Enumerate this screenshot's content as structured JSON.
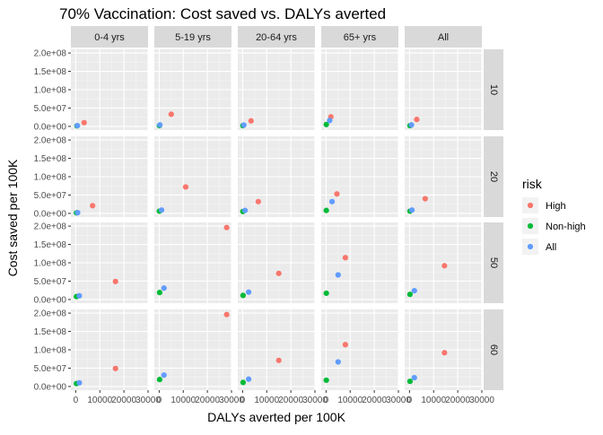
{
  "chart_data": {
    "type": "scatter",
    "title": "70% Vaccination: Cost saved vs. DALYs averted",
    "xlabel": "DALYs averted per 100K",
    "ylabel": "Cost saved per 100K",
    "xlim": [
      -2000,
      30000
    ],
    "ylim": [
      -10000000,
      210000000
    ],
    "x_ticks": [
      {
        "value": 0,
        "label": "0"
      },
      {
        "value": 10000,
        "label": "10000"
      },
      {
        "value": 20000,
        "label": "20000"
      },
      {
        "value": 30000,
        "label": "30000"
      }
    ],
    "y_ticks": [
      {
        "value": 0,
        "label": "0.0e+00"
      },
      {
        "value": 50000000,
        "label": "5.0e+07"
      },
      {
        "value": 100000000,
        "label": "1.0e+08"
      },
      {
        "value": 150000000,
        "label": "1.5e+08"
      },
      {
        "value": 200000000,
        "label": "2.0e+08"
      }
    ],
    "grid": true,
    "legend": {
      "title": "risk",
      "position": "right",
      "entries": [
        {
          "label": "High",
          "color": "#F8766D"
        },
        {
          "label": "Non-high",
          "color": "#00BA38"
        },
        {
          "label": "All",
          "color": "#619CFF"
        }
      ]
    },
    "facet_columns": [
      "0-4 yrs",
      "5-19 yrs",
      "20-64 yrs",
      "65+ yrs",
      "All"
    ],
    "facet_rows": [
      "10",
      "20",
      "50",
      "60"
    ],
    "panels": [
      [
        {
          "High": [
            3500,
            10000000
          ],
          "Non-high": [
            500,
            1500000
          ],
          "All": [
            700,
            2000000
          ]
        },
        {
          "High": [
            5000,
            33000000
          ],
          "Non-high": [
            100,
            2000000
          ],
          "All": [
            300,
            4000000
          ]
        },
        {
          "High": [
            3500,
            15000000
          ],
          "Non-high": [
            100,
            2000000
          ],
          "All": [
            500,
            3500000
          ]
        },
        {
          "High": [
            2000,
            26000000
          ],
          "Non-high": [
            100,
            5000000
          ],
          "All": [
            1500,
            16000000
          ]
        },
        {
          "High": [
            3000,
            19000000
          ],
          "Non-high": [
            200,
            2000000
          ],
          "All": [
            800,
            4000000
          ]
        }
      ],
      [
        {
          "High": [
            7000,
            21000000
          ],
          "Non-high": [
            300,
            1500000
          ],
          "All": [
            800,
            2000000
          ]
        },
        {
          "High": [
            11000,
            72000000
          ],
          "Non-high": [
            100,
            6000000
          ],
          "All": [
            1000,
            9000000
          ]
        },
        {
          "High": [
            6500,
            32000000
          ],
          "Non-high": [
            100,
            5000000
          ],
          "All": [
            1000,
            8000000
          ]
        },
        {
          "High": [
            4500,
            53000000
          ],
          "Non-high": [
            100,
            8000000
          ],
          "All": [
            2500,
            32000000
          ]
        },
        {
          "High": [
            6500,
            40000000
          ],
          "Non-high": [
            200,
            6000000
          ],
          "All": [
            1000,
            9000000
          ]
        }
      ],
      [
        {
          "High": [
            16500,
            49000000
          ],
          "Non-high": [
            300,
            8000000
          ],
          "All": [
            1500,
            10000000
          ]
        },
        {
          "High": [
            28000,
            196000000
          ],
          "Non-high": [
            200,
            19000000
          ],
          "All": [
            2000,
            31000000
          ]
        },
        {
          "High": [
            15000,
            71000000
          ],
          "Non-high": [
            200,
            11000000
          ],
          "All": [
            2500,
            20000000
          ]
        },
        {
          "High": [
            8000,
            114000000
          ],
          "Non-high": [
            100,
            17000000
          ],
          "All": [
            5000,
            67000000
          ]
        },
        {
          "High": [
            14500,
            92000000
          ],
          "Non-high": [
            200,
            14000000
          ],
          "All": [
            2000,
            24000000
          ]
        }
      ],
      [
        {
          "High": [
            16500,
            49000000
          ],
          "Non-high": [
            300,
            8000000
          ],
          "All": [
            1500,
            10000000
          ]
        },
        {
          "High": [
            28000,
            196000000
          ],
          "Non-high": [
            200,
            19000000
          ],
          "All": [
            2000,
            31000000
          ]
        },
        {
          "High": [
            15000,
            71000000
          ],
          "Non-high": [
            200,
            11000000
          ],
          "All": [
            2500,
            20000000
          ]
        },
        {
          "High": [
            8000,
            114000000
          ],
          "Non-high": [
            100,
            17000000
          ],
          "All": [
            5000,
            67000000
          ]
        },
        {
          "High": [
            14500,
            92000000
          ],
          "Non-high": [
            200,
            14000000
          ],
          "All": [
            2000,
            24000000
          ]
        }
      ]
    ]
  }
}
